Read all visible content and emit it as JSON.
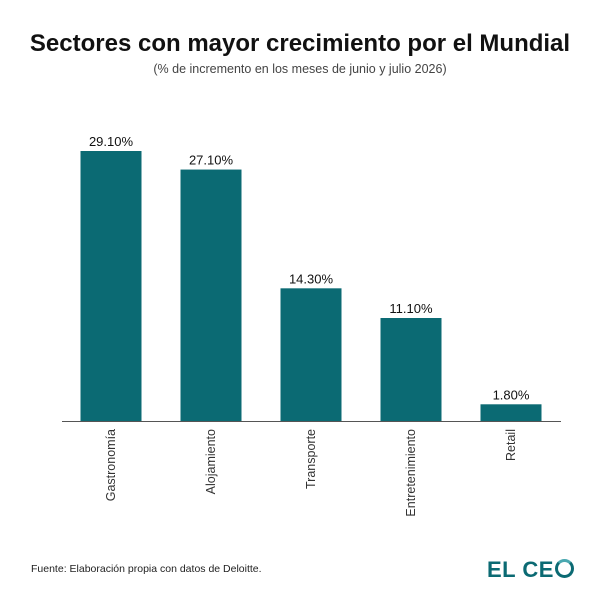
{
  "chart_data": {
    "type": "bar",
    "title": "Sectores con mayor crecimiento por el Mundial",
    "subtitle": "(% de incremento en los meses de junio y julio 2026)",
    "categories": [
      "Gastronomía",
      "Alojamiento",
      "Transporte",
      "Entretenimiento",
      "Retail"
    ],
    "values": [
      29.1,
      27.1,
      14.3,
      11.1,
      1.8
    ],
    "value_labels": [
      "29.10%",
      "27.10%",
      "14.30%",
      "11.10%",
      "1.80%"
    ],
    "xlabel": "",
    "ylabel": "",
    "ylim": [
      0,
      29.1
    ],
    "grid": false,
    "bar_color": "#0b6a73"
  },
  "footer": {
    "source": "Fuente: Elaboración propia con datos de Deloitte.",
    "logo_text": "EL CE",
    "logo_full": "EL CEO"
  },
  "colors": {
    "bar": "#0b6a73",
    "axis": "#555555",
    "logo": "#0b6a73"
  }
}
